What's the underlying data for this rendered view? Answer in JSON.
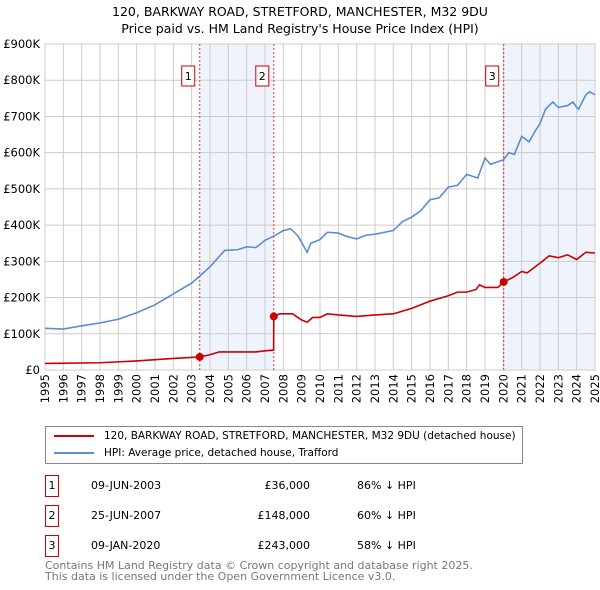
{
  "title": "120, BARKWAY ROAD, STRETFORD, MANCHESTER, M32 9DU",
  "subtitle": "Price paid vs. HM Land Registry's House Price Index (HPI)",
  "chart_data": {
    "type": "line",
    "xlim": [
      1995,
      2025
    ],
    "ylim": [
      0,
      900000
    ],
    "y_ticks": [
      {
        "v": 0,
        "label": "£0"
      },
      {
        "v": 100000,
        "label": "£100K"
      },
      {
        "v": 200000,
        "label": "£200K"
      },
      {
        "v": 300000,
        "label": "£300K"
      },
      {
        "v": 400000,
        "label": "£400K"
      },
      {
        "v": 500000,
        "label": "£500K"
      },
      {
        "v": 600000,
        "label": "£600K"
      },
      {
        "v": 700000,
        "label": "£700K"
      },
      {
        "v": 800000,
        "label": "£800K"
      },
      {
        "v": 900000,
        "label": "£900K"
      }
    ],
    "x_ticks": [
      "1995",
      "1996",
      "1997",
      "1998",
      "1999",
      "2000",
      "2001",
      "2002",
      "2003",
      "2004",
      "2005",
      "2006",
      "2007",
      "2008",
      "2009",
      "2010",
      "2011",
      "2012",
      "2013",
      "2014",
      "2015",
      "2016",
      "2017",
      "2018",
      "2019",
      "2020",
      "2021",
      "2022",
      "2023",
      "2024",
      "2025"
    ],
    "series": [
      {
        "name": "120, BARKWAY ROAD, STRETFORD, MANCHESTER, M32 9DU (detached house)",
        "color": "#cc0000",
        "x": [
          1995,
          1998,
          2000,
          2002,
          2003.44,
          2004,
          2004.5,
          2006.5,
          2007,
          2007.47,
          2007.48,
          2007.8,
          2008.5,
          2009,
          2009.3,
          2009.6,
          2010,
          2010.4,
          2011,
          2012,
          2013,
          2014,
          2015,
          2016,
          2017,
          2017.5,
          2018,
          2018.5,
          2018.7,
          2019,
          2019.7,
          2020.02,
          2020.5,
          2021,
          2021.3,
          2022,
          2022.5,
          2023,
          2023.5,
          2024,
          2024.5,
          2025
        ],
        "y": [
          18000,
          20000,
          25000,
          32000,
          36000,
          42000,
          50000,
          50000,
          53000,
          55000,
          148000,
          155000,
          155000,
          138000,
          132000,
          145000,
          145000,
          155000,
          152000,
          148000,
          152000,
          155000,
          170000,
          190000,
          205000,
          215000,
          215000,
          222000,
          235000,
          228000,
          228000,
          243000,
          255000,
          272000,
          268000,
          295000,
          315000,
          310000,
          318000,
          305000,
          325000,
          323000
        ]
      },
      {
        "name": "HPI: Average price, detached house, Trafford",
        "color": "#5b8dd0",
        "x": [
          1995,
          1996,
          1997,
          1998,
          1999,
          2000,
          2001,
          2002,
          2003,
          2003.5,
          2004,
          2004.8,
          2005.5,
          2006,
          2006.5,
          2007,
          2007.5,
          2008,
          2008.4,
          2008.8,
          2009.3,
          2009.5,
          2010,
          2010.4,
          2011,
          2011.5,
          2012,
          2012.5,
          2013,
          2014,
          2014.5,
          2015,
          2015.5,
          2016,
          2016.5,
          2017,
          2017.5,
          2018,
          2018.6,
          2019,
          2019.3,
          2019.7,
          2020,
          2020.3,
          2020.6,
          2021,
          2021.4,
          2021.8,
          2022,
          2022.3,
          2022.7,
          2023,
          2023.5,
          2023.8,
          2024,
          2024.1,
          2024.5,
          2024.7,
          2025
        ],
        "y": [
          115000,
          113000,
          122000,
          130000,
          140000,
          158000,
          180000,
          210000,
          240000,
          262000,
          285000,
          330000,
          332000,
          340000,
          338000,
          358000,
          370000,
          385000,
          390000,
          370000,
          325000,
          350000,
          360000,
          380000,
          378000,
          368000,
          362000,
          372000,
          375000,
          385000,
          410000,
          422000,
          440000,
          470000,
          475000,
          505000,
          510000,
          540000,
          530000,
          585000,
          568000,
          575000,
          580000,
          600000,
          595000,
          645000,
          630000,
          665000,
          680000,
          720000,
          740000,
          725000,
          730000,
          740000,
          725000,
          720000,
          760000,
          768000,
          760000
        ]
      }
    ],
    "sales": [
      {
        "label": "1",
        "x": 2003.44,
        "y": 36000
      },
      {
        "label": "2",
        "x": 2007.48,
        "y": 148000
      },
      {
        "label": "3",
        "x": 2020.02,
        "y": 243000
      }
    ],
    "shaded": [
      [
        2003.44,
        2007.48
      ],
      [
        2020.02,
        2025
      ]
    ]
  },
  "legend": [
    "120, BARKWAY ROAD, STRETFORD, MANCHESTER, M32 9DU (detached house)",
    "HPI: Average price, detached house, Trafford"
  ],
  "transactions": [
    {
      "n": "1",
      "date": "09-JUN-2003",
      "price": "£36,000",
      "hpi": "86% ↓ HPI"
    },
    {
      "n": "2",
      "date": "25-JUN-2007",
      "price": "£148,000",
      "hpi": "60% ↓ HPI"
    },
    {
      "n": "3",
      "date": "09-JAN-2020",
      "price": "£243,000",
      "hpi": "58% ↓ HPI"
    }
  ],
  "footer": [
    "Contains HM Land Registry data © Crown copyright and database right 2025.",
    "This data is licensed under the Open Government Licence v3.0."
  ]
}
